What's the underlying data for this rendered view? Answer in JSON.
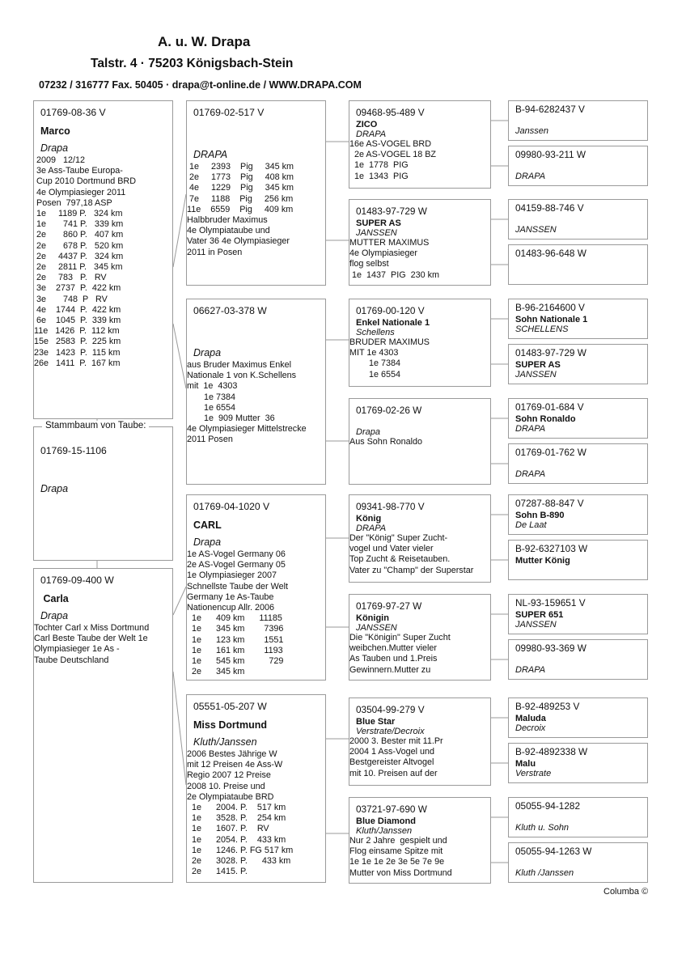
{
  "header": {
    "name": "A. u. W. Drapa",
    "address": "Talstr. 4  ·  75203 Königsbach-Stein",
    "contact": "07232 / 316777 Fax. 50405  ·  drapa@t-online.de / WWW.DRAPA.COM"
  },
  "subject": {
    "legend": "Stammbaum von Taube:",
    "ring": "01769-15-1106",
    "name": "",
    "breeder": "Drapa",
    "lines": []
  },
  "parents": [
    {
      "ring": "01769-08-36 V",
      "name": "Marco",
      "breeder": "Drapa",
      "lines": [
        " 2009   12/12",
        " 3e Ass-Taube Europa-",
        " Cup 2010 Dortmund BRD",
        " 4e Olympiasieger 2011",
        " Posen  797,18 ASP",
        " 1e     1189 P.   324 km",
        " 1e       741 P.   339 km",
        " 2e       860 P.   407 km",
        " 2e       678 P.   520 km",
        " 2e     4437 P.   324 km",
        " 2e     2811 P.   345 km",
        " 2e     783   P.   RV",
        " 3e    2737  P.  422 km",
        " 3e       748  P   RV",
        " 4e    1744  P.  422 km",
        " 6e    1045  P.  339 km",
        "11e   1426  P.  112 km",
        "15e   2583  P.  225 km",
        "23e   1423  P.  115 km",
        "26e   1411  P.  167 km"
      ]
    },
    {
      "ring": "01769-09-400 W",
      "name": " Carla",
      "breeder": "Drapa",
      "lines": [
        "Tochter Carl x Miss Dortmund",
        "Carl Beste Taube der Welt 1e",
        "Olympiasieger 1e As -",
        "Taube Deutschland"
      ]
    }
  ],
  "grandparents": [
    {
      "ring": "01769-02-517 V",
      "name": "",
      "breeder": "DRAPA",
      "lines": [
        " 1e     2393    Pig     345 km",
        " 2e     1773    Pig     408 km",
        " 4e     1229    Pig     345 km",
        " 7e     1188    Pig     256 km",
        "11e    6559    Pig     409 km",
        "Halbbruder Maximus",
        "4e Olympiataube und",
        "Vater 36 4e Olympiasieger",
        "2011 in Posen"
      ]
    },
    {
      "ring": "06627-03-378 W",
      "name": "",
      "breeder": "Drapa",
      "lines": [
        "aus Bruder Maximus Enkel",
        "Nationale 1 von K.Schellens",
        "mit  1e  4303",
        "       1e 7384",
        "       1e 6554",
        "       1e  909 Mutter  36",
        "4e Olympiasieger Mittelstrecke",
        "2011 Posen"
      ]
    },
    {
      "ring": "01769-04-1020 V",
      "name": "CARL",
      "breeder": "Drapa",
      "lines": [
        "1e AS-Vogel Germany 06",
        "2e AS-Vogel Germany 05",
        "1e Olympiasieger 2007",
        "Schnellste Taube der Welt",
        "Germany 1e As-Taube",
        "Nationencup Allr. 2006",
        "  1e      409 km      11185",
        "  1e      345 km        7396",
        "  1e      123 km        1551",
        "  1e      161 km        1193",
        "  1e      545 km          729",
        "  2e      345 km"
      ]
    },
    {
      "ring": "05551-05-207 W",
      "name": "Miss Dortmund",
      "breeder": "Kluth/Janssen",
      "lines": [
        "2006 Bestes Jährige W",
        "mit 12 Preisen 4e Ass-W",
        "Regio 2007 12 Preise",
        "2008 10. Preise und",
        "2e Olympiataube BRD",
        "  1e      2004. P.    517 km",
        "  1e      3528. P.    254 km",
        "  1e      1607. P.    RV",
        "  1e      2054. P.    433 km",
        "  1e      1246. P. FG 517 km",
        "  2e      3028. P.      433 km",
        "  2e      1415. P."
      ]
    }
  ],
  "great_grandparents": [
    {
      "ring": "09468-95-489 V",
      "name": "ZICO",
      "breeder": "DRAPA",
      "lines": [
        "16e AS-VOGEL BRD",
        "  2e AS-VOGEL 18 BZ",
        "  1e  1778  PIG",
        "  1e  1343  PIG"
      ]
    },
    {
      "ring": "01483-97-729 W",
      "name": "SUPER AS",
      "breeder": "JANSSEN",
      "lines": [
        "MUTTER MAXIMUS",
        "4e Olympiasieger",
        "flog selbst",
        " 1e  1437  PIG  230 km"
      ]
    },
    {
      "ring": "01769-00-120 V",
      "name": "Enkel Nationale 1",
      "breeder": "Schellens",
      "lines": [
        "BRUDER MAXIMUS",
        "MIT 1e 4303",
        "        1e 7384",
        "        1e 6554"
      ]
    },
    {
      "ring": "01769-02-26 W",
      "name": "",
      "breeder": "Drapa",
      "lines": [
        "Aus Sohn Ronaldo"
      ]
    },
    {
      "ring": "09341-98-770 V",
      "name": "König",
      "breeder": "DRAPA",
      "lines": [
        "Der \"König\" Super Zucht-",
        "vogel und Vater vieler",
        "Top Zucht & Reisetauben.",
        "Vater zu \"Champ\" der Superstar"
      ]
    },
    {
      "ring": "01769-97-27 W",
      "name": "Königin",
      "breeder": "JANSSEN",
      "lines": [
        "Die \"Königin\" Super Zucht",
        "weibchen.Mutter vieler",
        "As Tauben und 1.Preis",
        "Gewinnern.Mutter zu"
      ]
    },
    {
      "ring": "03504-99-279 V",
      "name": "Blue Star",
      "breeder": "Verstrate/Decroix",
      "lines": [
        "2000 3. Bester mit 11.Pr",
        "2004 1 Ass-Vogel und",
        "Bestgereister Altvogel",
        "mit 10. Preisen auf der"
      ]
    },
    {
      "ring": "03721-97-690 W",
      "name": "Blue Diamond",
      "breeder": "Kluth/Janssen",
      "lines": [
        "Nur 2 Jahre  gespielt und",
        "Flog einsame Spitze mit",
        "1e 1e 1e 2e 3e 5e 7e 9e",
        "Mutter von Miss Dortmund"
      ]
    }
  ],
  "gg_grandparents": [
    {
      "ring": "B-94-6282437 V",
      "name": "",
      "breeder": "Janssen"
    },
    {
      "ring": "09980-93-211 W",
      "name": "",
      "breeder": "DRAPA"
    },
    {
      "ring": "04159-88-746 V",
      "name": "",
      "breeder": "JANSSEN"
    },
    {
      "ring": "01483-96-648 W",
      "name": "",
      "breeder": ""
    },
    {
      "ring": "B-96-2164600 V",
      "name": "Sohn Nationale 1",
      "breeder": "SCHELLENS"
    },
    {
      "ring": "01483-97-729 W",
      "name": "SUPER AS",
      "breeder": "JANSSEN"
    },
    {
      "ring": "01769-01-684 V",
      "name": "Sohn Ronaldo",
      "breeder": "DRAPA"
    },
    {
      "ring": "01769-01-762 W",
      "name": "",
      "breeder": "DRAPA"
    },
    {
      "ring": "07287-88-847 V",
      "name": "Sohn B-890",
      "breeder": "De Laat"
    },
    {
      "ring": "B-92-6327103 W",
      "name": "Mutter König",
      "breeder": ""
    },
    {
      "ring": "NL-93-159651 V",
      "name": "SUPER 651",
      "breeder": "JANSSEN"
    },
    {
      "ring": "09980-93-369 W",
      "name": "",
      "breeder": "DRAPA"
    },
    {
      "ring": "B-92-489253 V",
      "name": "Maluda",
      "breeder": "Decroix"
    },
    {
      "ring": "B-92-4892338 W",
      "name": "Malu",
      "breeder": "Verstrate"
    },
    {
      "ring": "05055-94-1282",
      "name": "",
      "breeder": "Kluth u. Sohn"
    },
    {
      "ring": "05055-94-1263 W",
      "name": "",
      "breeder": "Kluth /Janssen"
    }
  ],
  "footer": "Columba ©"
}
